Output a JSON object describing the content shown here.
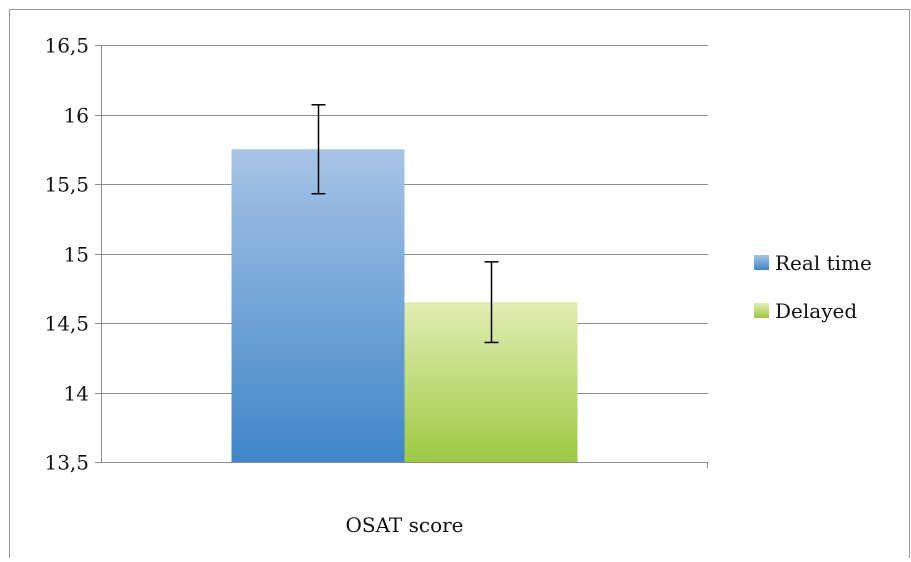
{
  "chart_data": {
    "type": "bar",
    "categories": [
      "OSAT score"
    ],
    "series": [
      {
        "name": "Real time",
        "values": [
          15.75
        ],
        "error": [
          0.32
        ],
        "color_top": "#a7c4e6",
        "color_bottom": "#3f86c8"
      },
      {
        "name": "Delayed",
        "values": [
          14.65
        ],
        "error": [
          0.29
        ],
        "color_top": "#e1eeb4",
        "color_bottom": "#9dc942"
      }
    ],
    "title": "",
    "xlabel": "",
    "ylabel": "",
    "ylim": [
      13.5,
      16.5
    ],
    "yticks": [
      13.5,
      14,
      14.5,
      15,
      15.5,
      16,
      16.5
    ],
    "ytick_labels": [
      "13,5",
      "14",
      "14,5",
      "15",
      "15,5",
      "16",
      "16,5"
    ],
    "grid": true,
    "grid_color": "#8c8c8c",
    "legend": "right",
    "frame_color": "#9a9a9a"
  }
}
